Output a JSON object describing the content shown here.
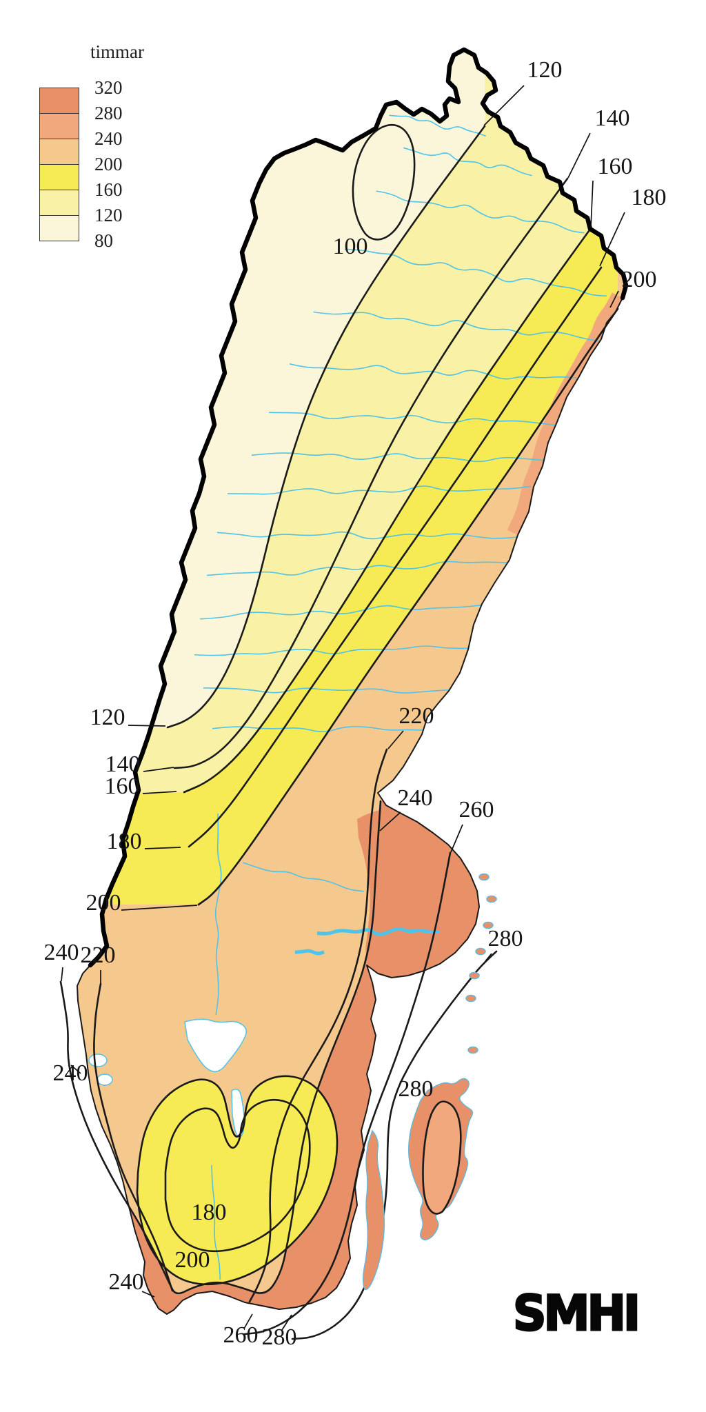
{
  "legend": {
    "title": "timmar",
    "tick_labels": [
      "320",
      "280",
      "240",
      "200",
      "160",
      "120",
      "80"
    ],
    "band_colors": [
      "#E89169",
      "#F0A87C",
      "#F5C88E",
      "#F6EB55",
      "#F8F1A6",
      "#FBF6DA"
    ]
  },
  "map": {
    "unit": "timmar",
    "contour_values_shown": [
      "100",
      "120",
      "140",
      "160",
      "180",
      "200",
      "220",
      "240",
      "260",
      "280"
    ],
    "contour_labels": [
      {
        "text": "100"
      },
      {
        "text": "120"
      },
      {
        "text": "140"
      },
      {
        "text": "160"
      },
      {
        "text": "180"
      },
      {
        "text": "200"
      },
      {
        "text": "120"
      },
      {
        "text": "140"
      },
      {
        "text": "160"
      },
      {
        "text": "180"
      },
      {
        "text": "200"
      },
      {
        "text": "240"
      },
      {
        "text": "220"
      },
      {
        "text": "240"
      },
      {
        "text": "220"
      },
      {
        "text": "240"
      },
      {
        "text": "260"
      },
      {
        "text": "280"
      },
      {
        "text": "280"
      },
      {
        "text": "180"
      },
      {
        "text": "200"
      },
      {
        "text": "240"
      },
      {
        "text": "260"
      },
      {
        "text": "280"
      }
    ],
    "colors": {
      "river": "#4FC3E8",
      "contour": "#1A1A1A",
      "border": "#000000",
      "sea": "#FFFFFF"
    }
  },
  "logo": {
    "text": "SMHI"
  }
}
